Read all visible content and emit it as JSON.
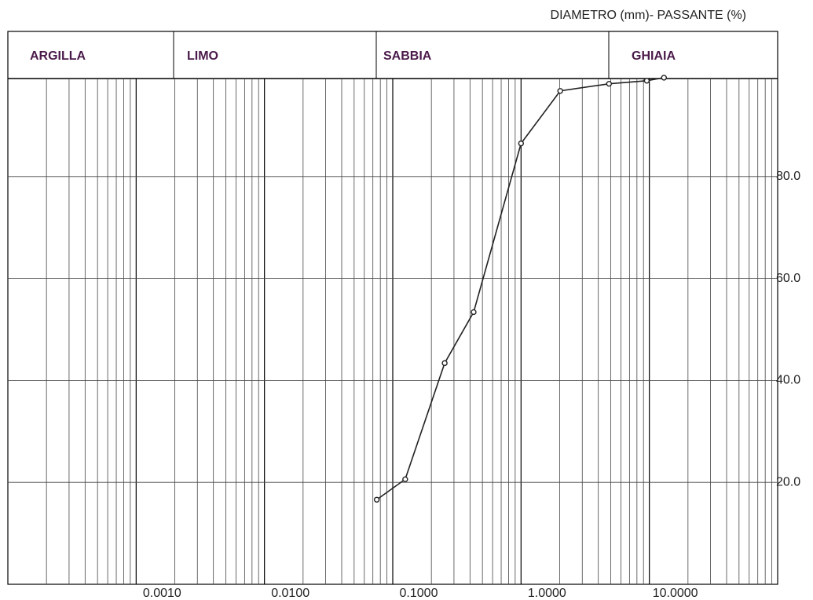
{
  "chart_data": {
    "type": "line",
    "title": "DIAMETRO (mm)- PASSANTE (%)",
    "zones": [
      "ARGILLA",
      "LIMO",
      "SABBIA",
      "GHIAIA"
    ],
    "log_x": true,
    "grid": true,
    "color": "#222222",
    "x": [
      0.075,
      0.125,
      0.254,
      0.427,
      1.0,
      2.02,
      4.85,
      9.55,
      13.0
    ],
    "series": [
      {
        "values": [
          16.6,
          20.6,
          43.4,
          53.4,
          86.5,
          96.8,
          98.2,
          98.8,
          99.4
        ]
      }
    ],
    "xlim": [
      0.0001,
      100
    ],
    "xticks": [
      {
        "value": 0.001,
        "label": "0.0010"
      },
      {
        "value": 0.01,
        "label": "0.0100"
      },
      {
        "value": 0.1,
        "label": "0.1000"
      },
      {
        "value": 1,
        "label": "1.0000"
      },
      {
        "value": 10,
        "label": "10.0000"
      }
    ],
    "ylim": [
      0,
      100
    ],
    "yticks": [
      {
        "value": 20,
        "label": "20.0"
      },
      {
        "value": 40,
        "label": "40.0"
      },
      {
        "value": 60,
        "label": "60.0"
      },
      {
        "value": 80,
        "label": "80.0"
      }
    ]
  }
}
